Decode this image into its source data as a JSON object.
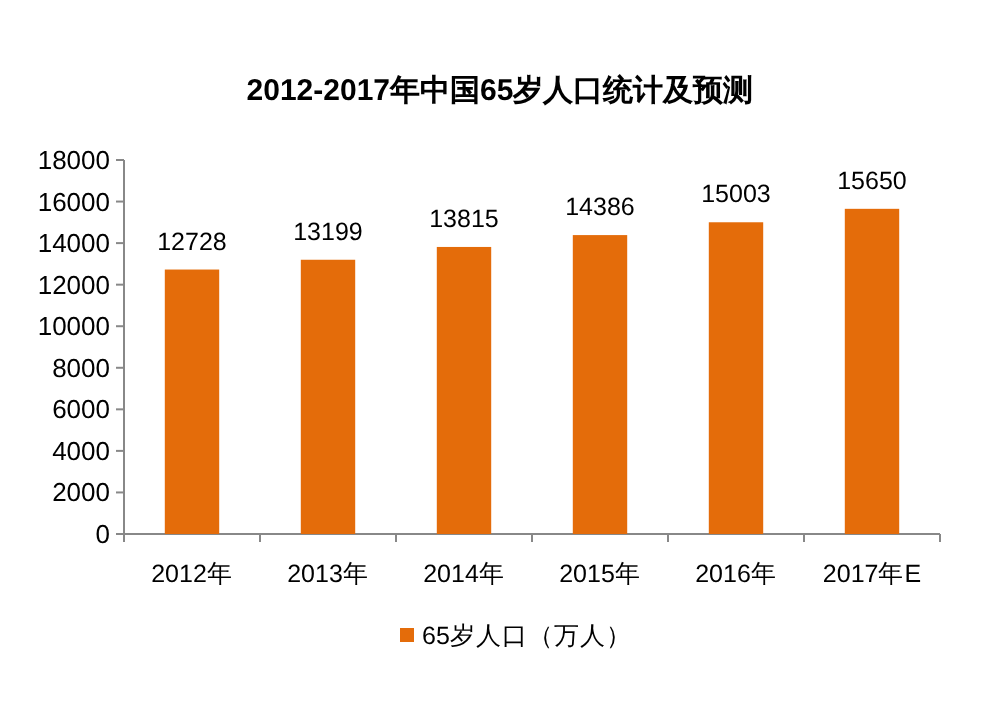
{
  "chart_data": {
    "type": "bar",
    "title": "2012-2017年中国65岁人口统计及预测",
    "categories": [
      "2012年",
      "2013年",
      "2014年",
      "2015年",
      "2016年",
      "2017年E"
    ],
    "series": [
      {
        "name": "65岁人口（万人）",
        "color": "#e46c0a",
        "values": [
          12728,
          13199,
          13815,
          14386,
          15003,
          15650
        ]
      }
    ],
    "ylim": [
      0,
      18000
    ],
    "yticks": [
      0,
      2000,
      4000,
      6000,
      8000,
      10000,
      12000,
      14000,
      16000,
      18000
    ],
    "data_labels": true,
    "legend": "bottom"
  }
}
